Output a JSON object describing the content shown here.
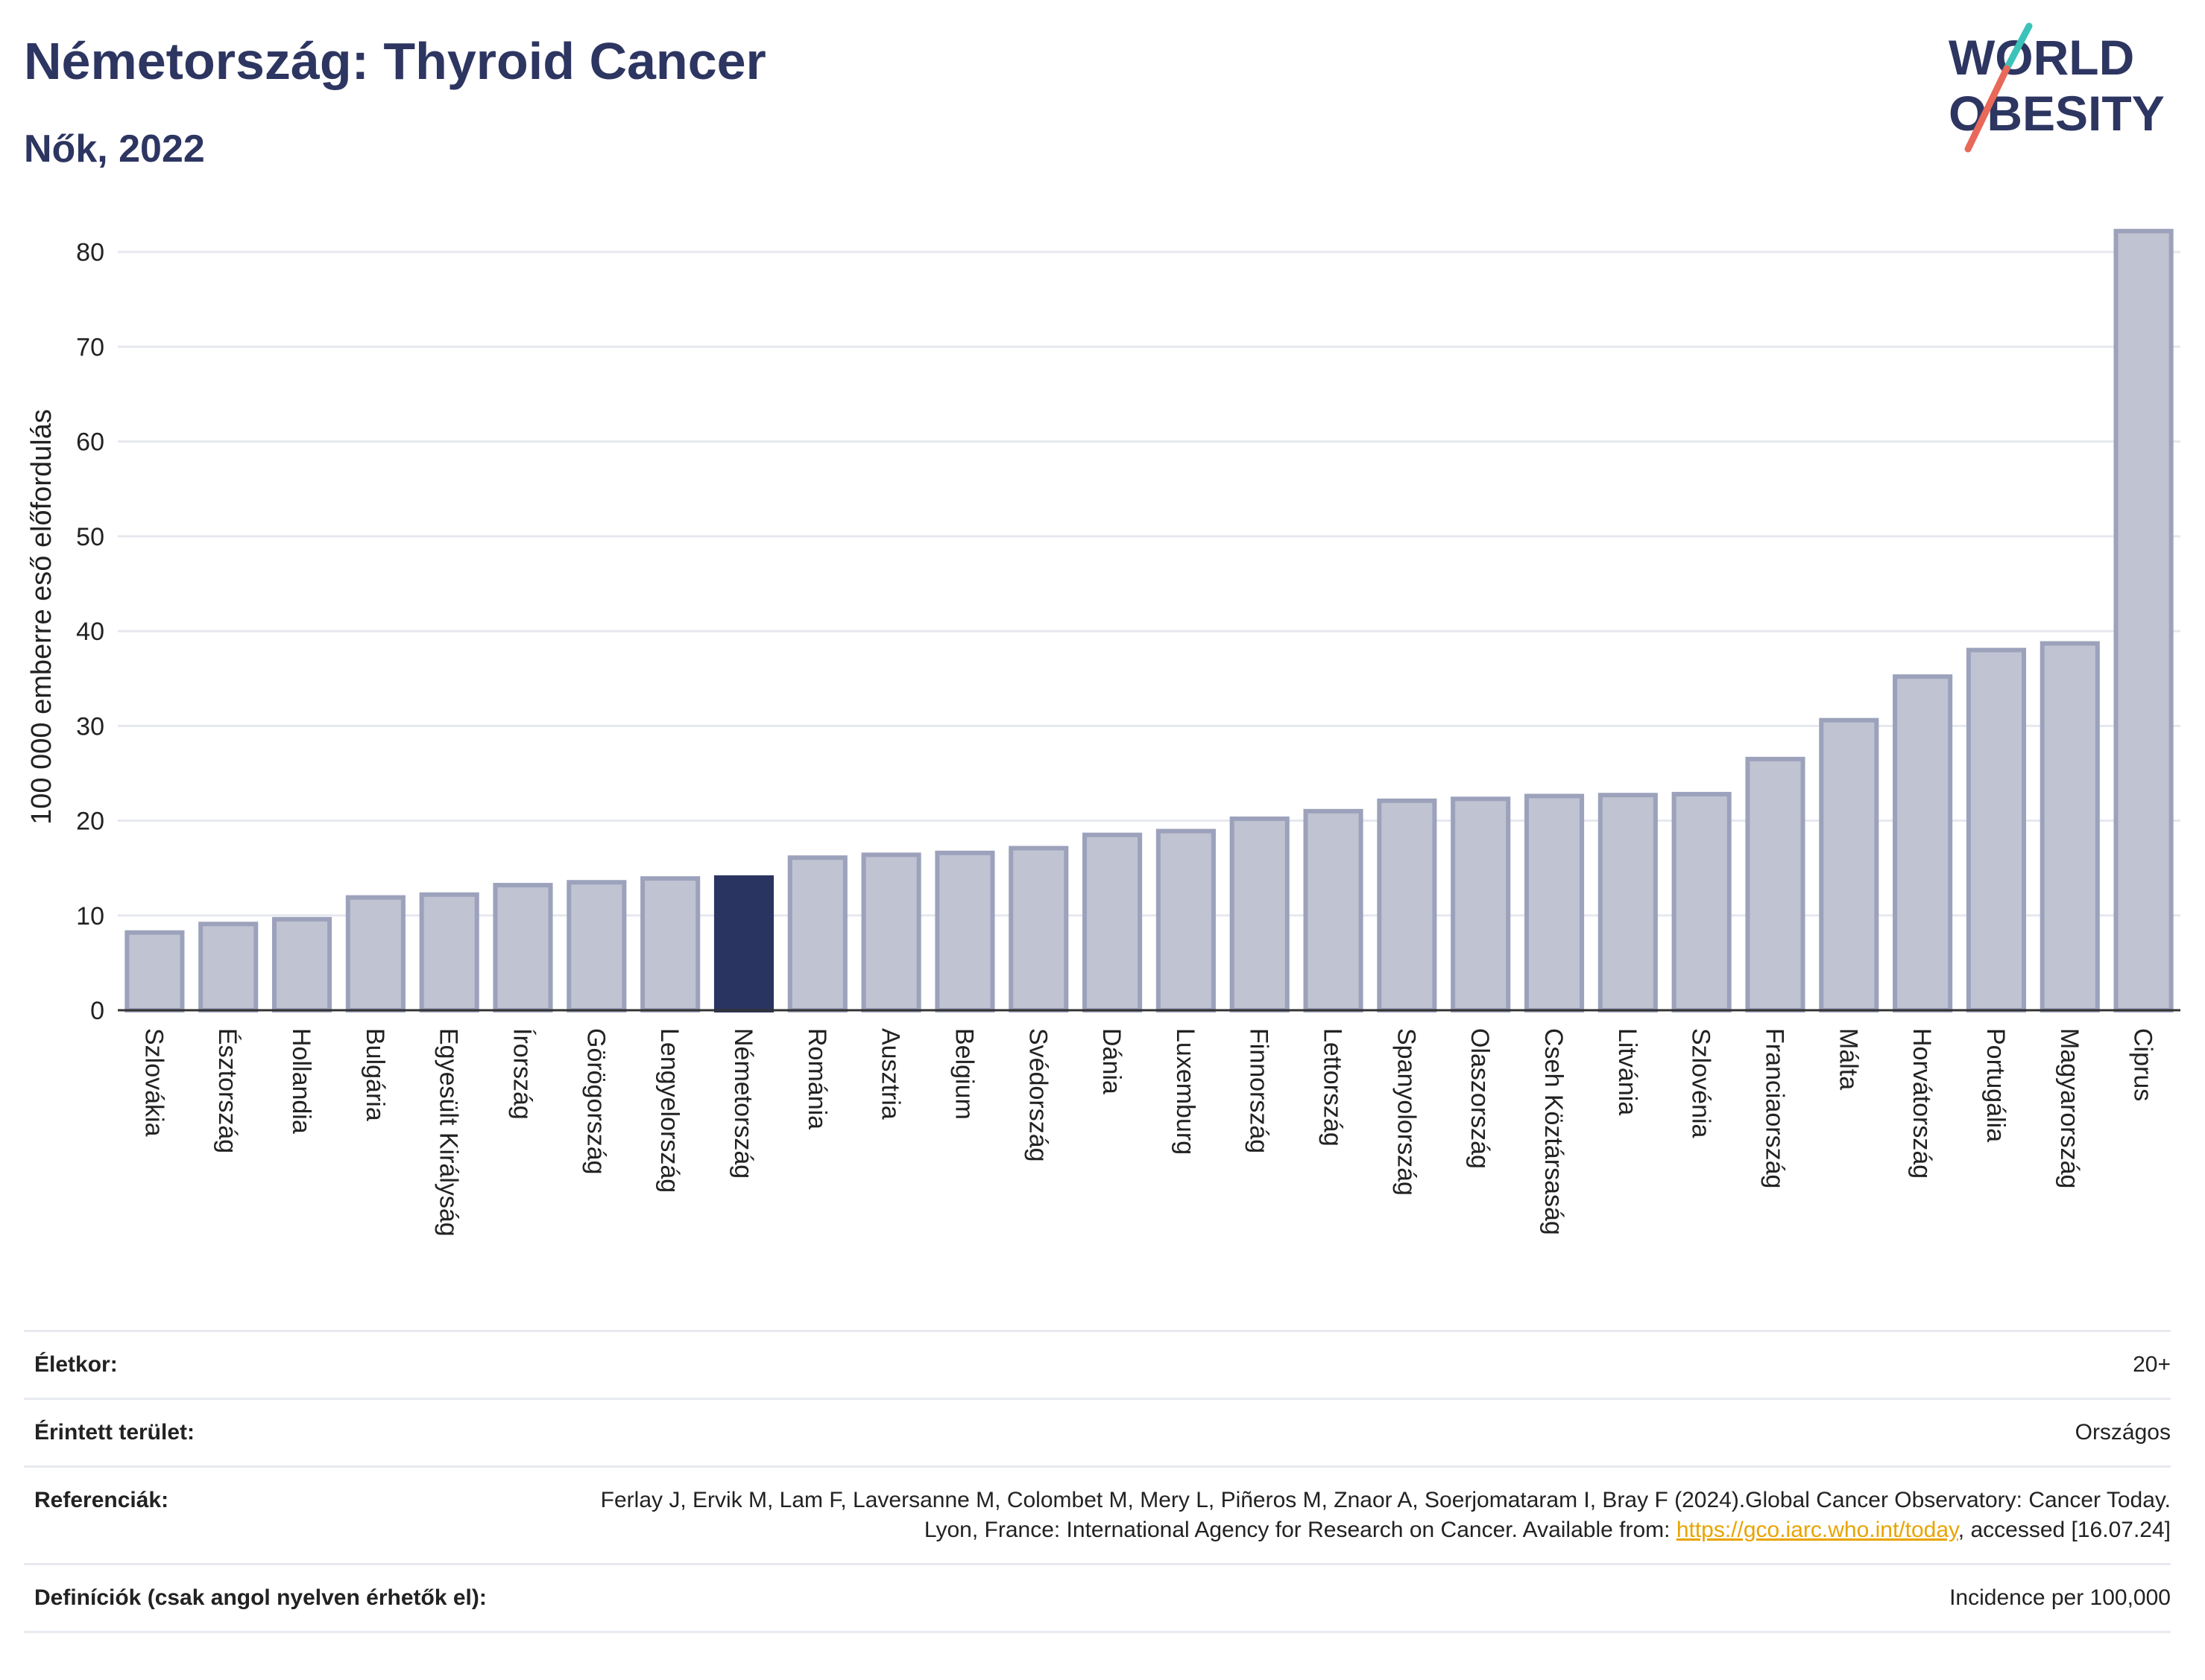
{
  "header": {
    "title": "Németország: Thyroid Cancer",
    "subtitle": "Nők, 2022"
  },
  "logo": {
    "line1": "WORLD",
    "line2": "OBESITY",
    "colors": {
      "text": "#2d3561",
      "slash_top": "#3cc3b9",
      "slash_bottom": "#e8685a"
    }
  },
  "chart_data": {
    "type": "bar",
    "title": "Németország: Thyroid Cancer",
    "subtitle": "Nők, 2022",
    "ylabel": "100 000 emberre eső előfordulás",
    "xlabel": "",
    "ylim": [
      0,
      83
    ],
    "yticks": [
      0,
      10,
      20,
      30,
      40,
      50,
      60,
      70,
      80
    ],
    "grid": true,
    "highlight": "Németország",
    "colors": {
      "bar": "#c0c3d1",
      "bar_edge": "#9ca2bb",
      "highlight": "#2a3461",
      "axis": "#333333",
      "grid": "#e6e8ef"
    },
    "categories": [
      "Szlovákia",
      "Észtország",
      "Hollandia",
      "Bulgária",
      "Egyesült Királyság",
      "Írország",
      "Görögország",
      "Lengyelország",
      "Németország",
      "Románia",
      "Ausztria",
      "Belgium",
      "Svédország",
      "Dánia",
      "Luxemburg",
      "Finnország",
      "Lettország",
      "Spanyolország",
      "Olaszország",
      "Cseh Köztársaság",
      "Litvánia",
      "Szlovénia",
      "Franciaország",
      "Málta",
      "Horvátország",
      "Portugália",
      "Magyarország",
      "Ciprus"
    ],
    "values": [
      8.2,
      9.1,
      9.6,
      11.9,
      12.2,
      13.2,
      13.5,
      13.9,
      14.0,
      16.1,
      16.4,
      16.6,
      17.1,
      18.5,
      18.9,
      20.2,
      21.0,
      22.1,
      22.3,
      22.6,
      22.7,
      22.8,
      26.5,
      30.6,
      35.2,
      38.0,
      38.7,
      82.2
    ]
  },
  "meta": {
    "age_label": "Életkor:",
    "age_value": "20+",
    "area_label": "Érintett terület:",
    "area_value": "Országos",
    "ref_label": "Referenciák:",
    "ref_text1": "Ferlay J, Ervik M, Lam F, Laversanne M, Colombet M, Mery L, Piñeros M, Znaor A, Soerjomataram I, Bray F (2024).Global Cancer Observatory: Cancer Today. Lyon, France: International Agency for Research on Cancer. Available from: ",
    "ref_link": "https://gco.iarc.who.int/today",
    "ref_text2": ", accessed [16.07.24]",
    "def_label": "Definíciók (csak angol nyelven érhetők el):",
    "def_value": "Incidence per 100,000"
  }
}
